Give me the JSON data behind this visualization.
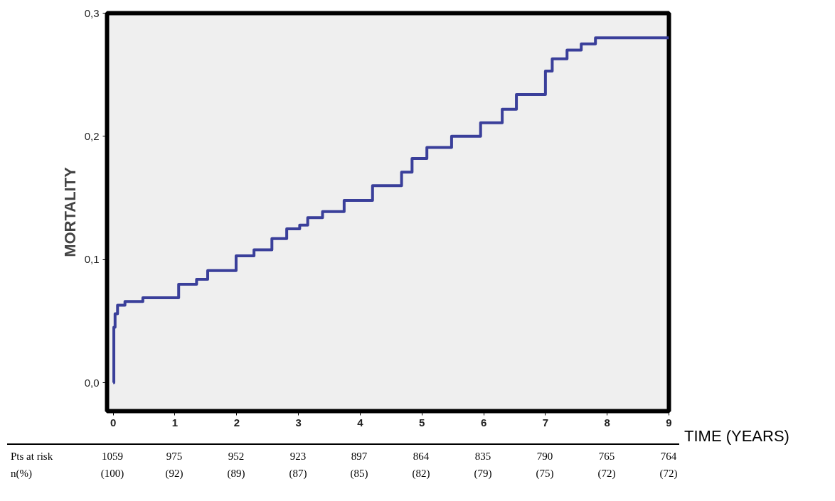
{
  "chart_data": {
    "type": "step",
    "ylabel": "MORTALITY",
    "xlabel": "TIME (YEARS)",
    "x": [
      0,
      0.01,
      0.03,
      0.07,
      0.19,
      0.48,
      1.06,
      1.35,
      1.53,
      1.99,
      2.28,
      2.57,
      2.81,
      3.02,
      3.15,
      3.39,
      3.74,
      4.2,
      4.67,
      4.84,
      5.08,
      5.48,
      5.95,
      6.3,
      6.53,
      7.0,
      7.11,
      7.35,
      7.58,
      7.81,
      9.0
    ],
    "series": [
      {
        "color": "#3a3f9a",
        "values": [
          0,
          0.045,
          0.056,
          0.063,
          0.066,
          0.069,
          0.08,
          0.084,
          0.091,
          0.103,
          0.108,
          0.117,
          0.125,
          0.128,
          0.134,
          0.139,
          0.148,
          0.16,
          0.171,
          0.182,
          0.191,
          0.2,
          0.211,
          0.222,
          0.234,
          0.253,
          0.263,
          0.27,
          0.275,
          0.28,
          0.28
        ]
      }
    ],
    "xlim": [
      -0.1,
      9.0
    ],
    "ylim": [
      -0.023,
      0.3
    ],
    "xticks": [
      0,
      1,
      2,
      3,
      4,
      5,
      6,
      7,
      8,
      9
    ],
    "yticks": [
      {
        "value": 0,
        "label": "0,0"
      },
      {
        "value": 0.1,
        "label": "0,1"
      },
      {
        "value": 0.2,
        "label": "0,2"
      },
      {
        "value": 0.3,
        "label": "0,3"
      }
    ],
    "grid": false,
    "line_style": "solid",
    "annotations": [
      "Pts at risk",
      "n(%)",
      "1059\n(100)",
      "975\n(92)",
      "952\n(89)",
      "923\n(87)",
      "897\n(85)",
      "864\n(82)",
      "835\n(79)",
      "790\n(75)",
      "765\n(72)",
      "764\n(72)"
    ]
  }
}
